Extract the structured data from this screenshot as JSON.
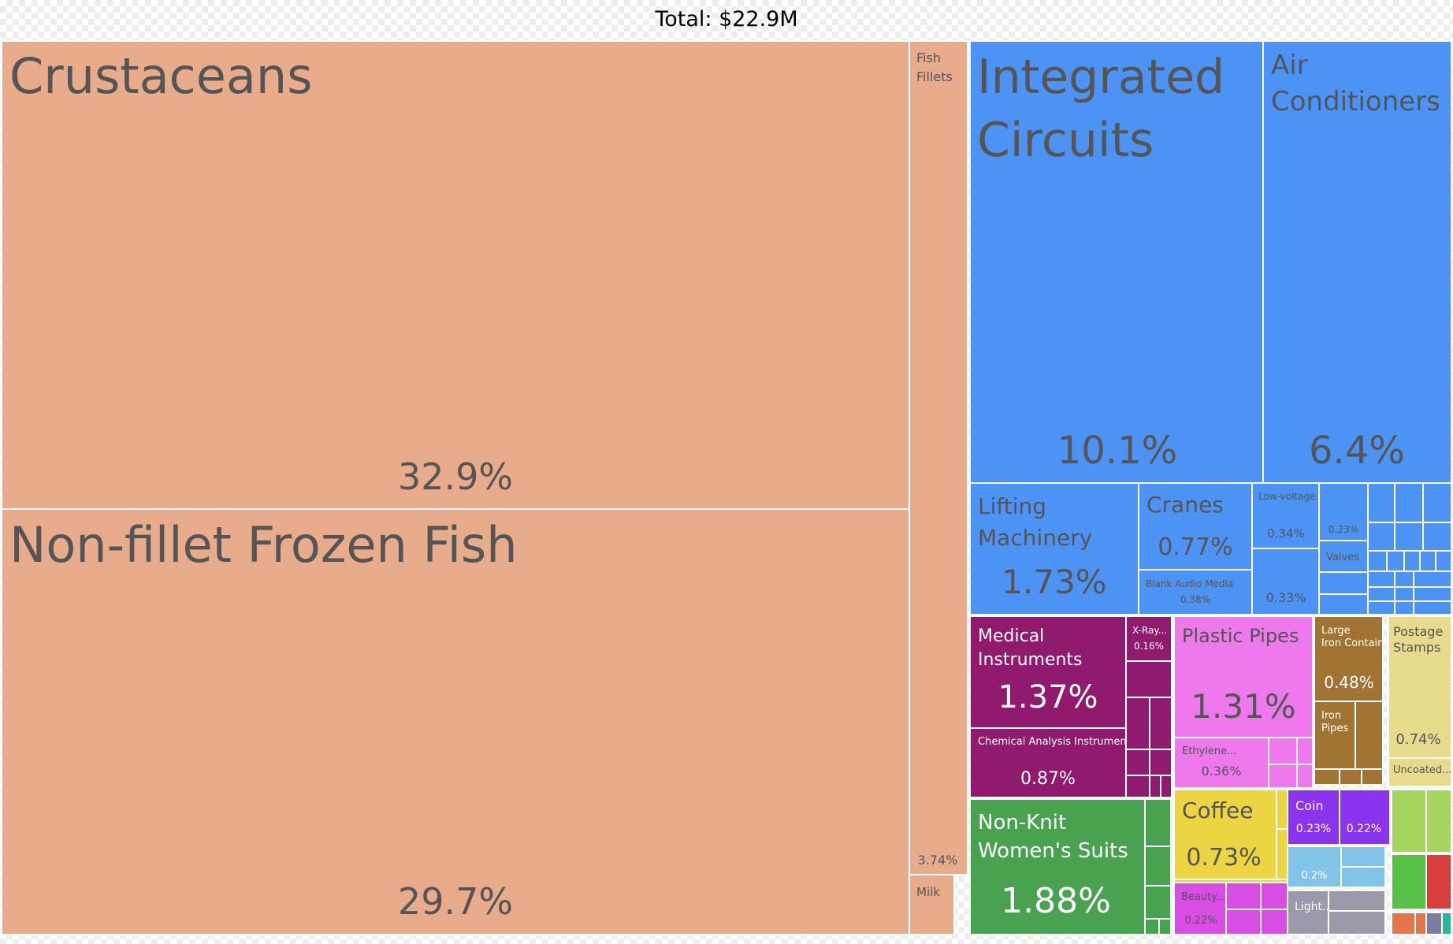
{
  "chart_data": {
    "type": "treemap",
    "title": "Total: $22.9M",
    "colors": {
      "animal": "#e8ab8b",
      "machines": "#4c93f4",
      "instruments": "#8f1a6e",
      "plastics": "#ed79ed",
      "metals": "#a27433",
      "paper": "#e9db8e",
      "textiles": "#49a24f",
      "vegetable": "#ecd443",
      "precious_metals": "#8a34ee",
      "mineral": "#82c4e8",
      "stone_glass": "#9a9aaa",
      "chemicals": "#d84ee4",
      "food": "#a6d660",
      "transport": "#58c248",
      "misc_red": "#d83e3e",
      "misc_orange": "#e2754a",
      "misc_slate": "#7c7ca0",
      "misc_teal": "#2ab69a",
      "label_dark": "#555555",
      "label_light": "#ffffff"
    },
    "items": [
      {
        "name": "Crustaceans",
        "value": "32.9%",
        "sector": "animal"
      },
      {
        "name": "Non-fillet Frozen Fish",
        "value": "29.7%",
        "sector": "animal"
      },
      {
        "name": "Fish Fillets",
        "value": "3.74%",
        "sector": "animal"
      },
      {
        "name": "Milk",
        "sector": "animal"
      },
      {
        "name": "Integrated Circuits",
        "value": "10.1%",
        "sector": "machines"
      },
      {
        "name": "Air Conditioners",
        "value": "6.4%",
        "sector": "machines"
      },
      {
        "name": "Lifting Machinery",
        "value": "1.73%",
        "sector": "machines"
      },
      {
        "name": "Cranes",
        "value": "0.77%",
        "sector": "machines"
      },
      {
        "name": "Blank Audio Media",
        "value": "0.38%",
        "sector": "machines"
      },
      {
        "name": "Low-voltage...",
        "value": "0.34%",
        "sector": "machines"
      },
      {
        "value": "0.33%",
        "sector": "machines"
      },
      {
        "value": "0.23%",
        "sector": "machines"
      },
      {
        "name": "Valves",
        "sector": "machines"
      },
      {
        "name": "Medical Instruments",
        "value": "1.37%",
        "sector": "instruments"
      },
      {
        "name": "X-Ray...",
        "value": "0.16%",
        "sector": "instruments"
      },
      {
        "name": "Chemical Analysis Instruments",
        "value": "0.87%",
        "sector": "instruments"
      },
      {
        "name": "Plastic Pipes",
        "value": "1.31%",
        "sector": "plastics"
      },
      {
        "name": "Ethylene...",
        "value": "0.36%",
        "sector": "plastics"
      },
      {
        "name": "Large Iron Containers",
        "value": "0.48%",
        "sector": "metals"
      },
      {
        "name": "Iron Pipes",
        "sector": "metals"
      },
      {
        "name": "Postage Stamps",
        "value": "0.74%",
        "sector": "paper"
      },
      {
        "name": "Uncoated...",
        "sector": "paper"
      },
      {
        "name": "Non-Knit Women's Suits",
        "value": "1.88%",
        "sector": "textiles"
      },
      {
        "name": "Coffee",
        "value": "0.73%",
        "sector": "vegetable"
      },
      {
        "name": "Coin",
        "value": "0.23%",
        "sector": "precious_metals"
      },
      {
        "value": "0.22%",
        "sector": "precious_metals"
      },
      {
        "value": "0.2%",
        "sector": "mineral"
      },
      {
        "name": "Light...",
        "sector": "stone_glass"
      },
      {
        "name": "Beauty...",
        "value": "0.22%",
        "sector": "chemicals"
      }
    ]
  }
}
